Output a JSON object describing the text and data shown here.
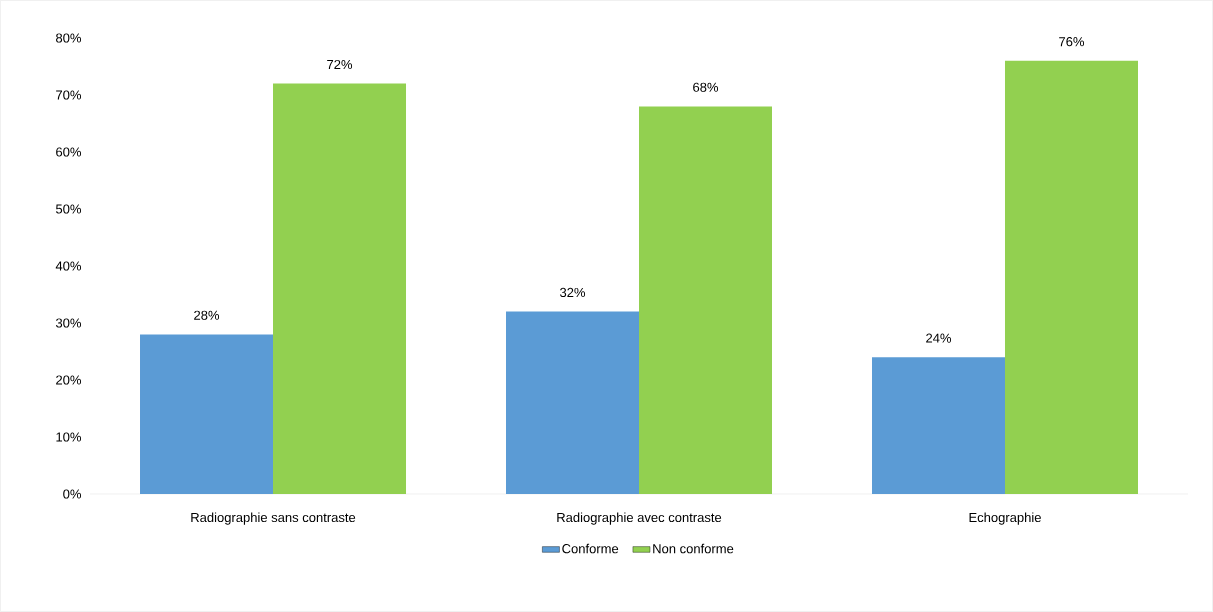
{
  "chart_data": {
    "type": "bar",
    "categories": [
      "Radiographie sans contraste",
      "Radiographie avec contraste",
      "Echographie"
    ],
    "series": [
      {
        "name": "Conforme",
        "color": "#5b9bd5",
        "values": [
          28,
          32,
          24
        ],
        "value_labels": [
          "28%",
          "32%",
          "24%"
        ]
      },
      {
        "name": "Non conforme",
        "color": "#92d050",
        "values": [
          72,
          68,
          76
        ],
        "value_labels": [
          "72%",
          "68%",
          "76%"
        ]
      }
    ],
    "ylim": [
      0,
      80
    ],
    "yticks": [
      {
        "value": 0,
        "label": "0%"
      },
      {
        "value": 10,
        "label": "10%"
      },
      {
        "value": 20,
        "label": "20%"
      },
      {
        "value": 30,
        "label": "30%"
      },
      {
        "value": 40,
        "label": "40%"
      },
      {
        "value": 50,
        "label": "50%"
      },
      {
        "value": 60,
        "label": "60%"
      },
      {
        "value": 70,
        "label": "70%"
      },
      {
        "value": 80,
        "label": "80%"
      }
    ],
    "legend": "bottom",
    "grid": false
  }
}
